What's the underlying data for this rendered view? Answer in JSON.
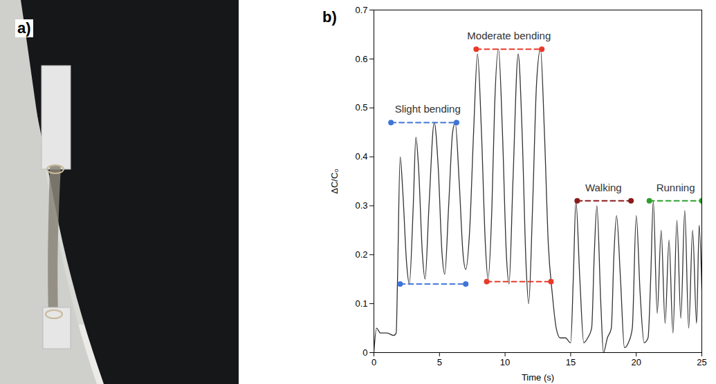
{
  "photo": {
    "panel_label": "a)"
  },
  "chart_data": {
    "type": "line",
    "panel_label": "b)",
    "xlabel": "Time (s)",
    "ylabel": "ΔC/C₀",
    "xlim": [
      0,
      25
    ],
    "xticks": [
      0,
      5,
      10,
      15,
      20,
      25
    ],
    "ylim": [
      0,
      0.7
    ],
    "yticks": [
      0,
      0.1,
      0.2,
      0.3,
      0.4,
      0.5,
      0.6,
      0.7
    ],
    "grid": false,
    "series": [
      {
        "color": "#333333",
        "x": [
          0,
          0.2,
          0.5,
          1.0,
          1.5,
          1.7,
          1.8,
          2.0,
          2.2,
          2.5,
          2.7,
          3.0,
          3.2,
          3.4,
          3.7,
          3.9,
          4.2,
          4.6,
          4.9,
          5.2,
          5.4,
          5.7,
          6.0,
          6.2,
          6.5,
          6.8,
          7.0,
          7.3,
          7.6,
          7.9,
          8.2,
          8.5,
          8.7,
          9.0,
          9.2,
          9.5,
          9.8,
          10.1,
          10.3,
          10.6,
          11.0,
          11.3,
          11.6,
          11.8,
          12.1,
          12.4,
          12.7,
          13.0,
          13.3,
          13.6,
          13.9,
          14.2,
          14.6,
          15.0,
          15.2,
          15.4,
          15.7,
          16.0,
          16.3,
          16.6,
          16.8,
          17.0,
          17.3,
          17.5,
          17.8,
          18.1,
          18.3,
          18.5,
          18.8,
          19.1,
          19.4,
          19.7,
          20.0,
          20.3,
          20.6,
          20.9,
          21.1,
          21.3,
          21.6,
          21.9,
          22.2,
          22.5,
          22.8,
          23.1,
          23.4,
          23.7,
          24.0,
          24.3,
          24.6,
          24.8,
          25.0
        ],
        "values": [
          0.0,
          0.05,
          0.04,
          0.04,
          0.035,
          0.04,
          0.15,
          0.4,
          0.33,
          0.18,
          0.14,
          0.3,
          0.44,
          0.38,
          0.2,
          0.15,
          0.3,
          0.47,
          0.38,
          0.2,
          0.16,
          0.3,
          0.45,
          0.47,
          0.35,
          0.2,
          0.17,
          0.25,
          0.45,
          0.61,
          0.45,
          0.22,
          0.15,
          0.3,
          0.5,
          0.62,
          0.45,
          0.2,
          0.14,
          0.35,
          0.61,
          0.45,
          0.18,
          0.1,
          0.3,
          0.55,
          0.62,
          0.45,
          0.22,
          0.12,
          0.05,
          0.03,
          0.03,
          0.02,
          0.15,
          0.31,
          0.15,
          0.02,
          0.03,
          0.05,
          0.2,
          0.3,
          0.1,
          0.0,
          0.03,
          0.05,
          0.2,
          0.28,
          0.15,
          0.01,
          0.02,
          0.05,
          0.28,
          0.12,
          0.02,
          0.03,
          0.15,
          0.31,
          0.08,
          0.25,
          0.06,
          0.23,
          0.04,
          0.27,
          0.07,
          0.29,
          0.05,
          0.25,
          0.06,
          0.26,
          0.13
        ]
      }
    ],
    "reference_lines": [
      {
        "x": [
          1.3,
          6.3
        ],
        "y": 0.47,
        "color": "#3f75d6",
        "line_style": "dashed",
        "marker": "circle"
      },
      {
        "x": [
          2.0,
          7.0
        ],
        "y": 0.14,
        "color": "#3f75d6",
        "line_style": "dashed",
        "marker": "circle"
      },
      {
        "x": [
          7.8,
          12.8
        ],
        "y": 0.62,
        "color": "#e83a2a",
        "line_style": "dashed",
        "marker": "circle"
      },
      {
        "x": [
          8.6,
          13.5
        ],
        "y": 0.145,
        "color": "#e83a2a",
        "line_style": "dashed",
        "marker": "circle"
      },
      {
        "x": [
          15.5,
          19.6
        ],
        "y": 0.31,
        "color": "#8b1a1a",
        "line_style": "dashed",
        "marker": "circle"
      },
      {
        "x": [
          21.0,
          25.0
        ],
        "y": 0.31,
        "color": "#2ca02c",
        "line_style": "dashed",
        "marker": "circle"
      }
    ],
    "annotations": [
      {
        "text": "Slight bending",
        "x": 4.1,
        "y": 0.49
      },
      {
        "text": "Moderate bending",
        "x": 10.3,
        "y": 0.64
      },
      {
        "text": "Walking",
        "x": 17.5,
        "y": 0.33
      },
      {
        "text": "Running",
        "x": 23.0,
        "y": 0.33
      }
    ]
  }
}
